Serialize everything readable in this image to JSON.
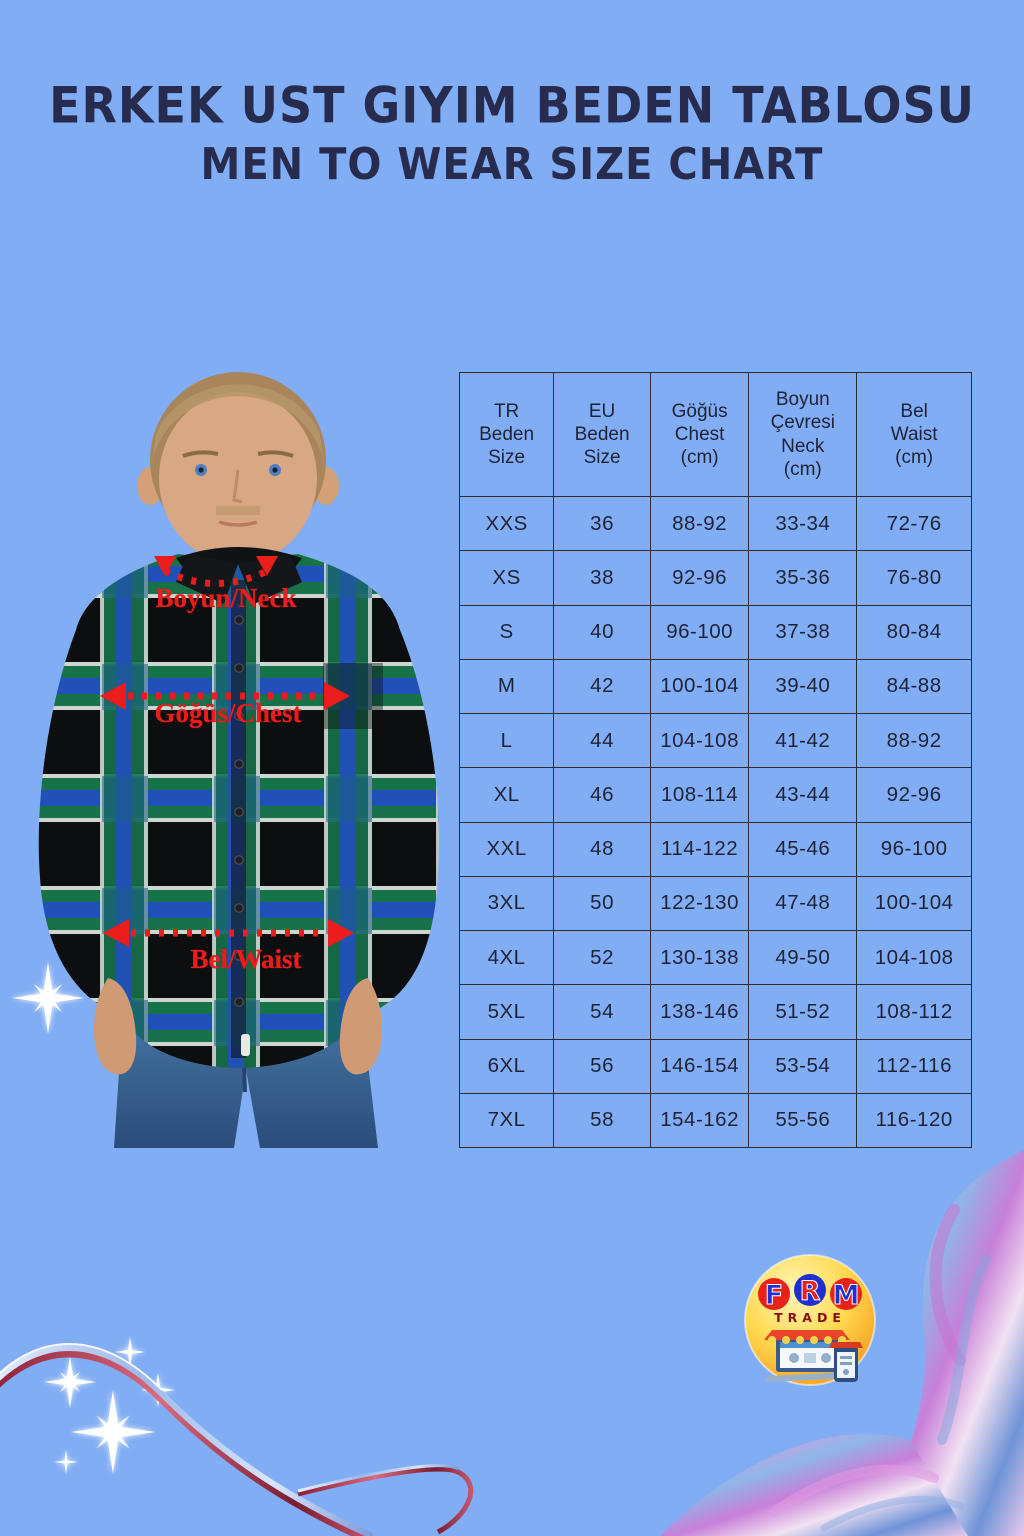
{
  "page": {
    "background_color": "#81adf4",
    "title_color": "#272b4d",
    "accent_red": "#ea1c1c"
  },
  "title": {
    "line1": "ERKEK UST GIYIM BEDEN TABLOSU",
    "line2": "MEN TO WEAR SIZE CHART"
  },
  "annotations": {
    "neck_label": "Boyun/Neck",
    "chest_label": "Göğüs/Chest",
    "waist_label": "Bel/Waist",
    "color": "#ea1c1c"
  },
  "chart_data": {
    "type": "table",
    "columns": [
      "TR\nBeden\nSize",
      "EU\nBeden\nSize",
      "Göğüs\nChest\n(cm)",
      "Boyun\nÇevresi\nNeck\n(cm)",
      "Bel\nWaist\n(cm)"
    ],
    "rows": [
      [
        "XXS",
        "36",
        "88-92",
        "33-34",
        "72-76"
      ],
      [
        "XS",
        "38",
        "92-96",
        "35-36",
        "76-80"
      ],
      [
        "S",
        "40",
        "96-100",
        "37-38",
        "80-84"
      ],
      [
        "M",
        "42",
        "100-104",
        "39-40",
        "84-88"
      ],
      [
        "L",
        "44",
        "104-108",
        "41-42",
        "88-92"
      ],
      [
        "XL",
        "46",
        "108-114",
        "43-44",
        "92-96"
      ],
      [
        "XXL",
        "48",
        "114-122",
        "45-46",
        "96-100"
      ],
      [
        "3XL",
        "50",
        "122-130",
        "47-48",
        "100-104"
      ],
      [
        "4XL",
        "52",
        "130-138",
        "49-50",
        "104-108"
      ],
      [
        "5XL",
        "54",
        "138-146",
        "51-52",
        "108-112"
      ],
      [
        "6XL",
        "56",
        "146-154",
        "53-54",
        "112-116"
      ],
      [
        "7XL",
        "58",
        "154-162",
        "55-56",
        "116-120"
      ]
    ]
  },
  "logo": {
    "letter_f": "F",
    "letter_r": "R",
    "letter_m": "M",
    "sub": "TRADE",
    "circle_colors": {
      "f": "#e8221a",
      "r": "#1f2fd0",
      "m": "#e8221a"
    },
    "badge_gradient": [
      "#fff6b8",
      "#ffd84d",
      "#f59a1c"
    ]
  }
}
